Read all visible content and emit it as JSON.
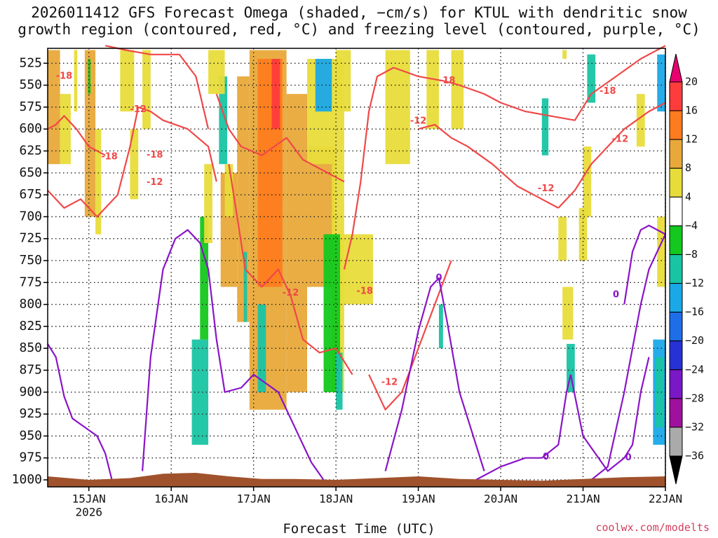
{
  "title_line1": "2026011412 GFS Forecast Omega (shaded, −cm/s) for KTUL with dendritic snow",
  "title_line2": "growth region (contoured, red, °C) and freezing level (contoured, purple, °C)",
  "credit": "coolwx.com/modelts",
  "chart_data": {
    "type": "heatmap",
    "title": "2026011412 GFS Forecast Omega (shaded, −cm/s) for KTUL with dendritic snow growth region (contoured, red, °C) and freezing level (contoured, purple, °C)",
    "xlabel": "Forecast Time (UTC)",
    "ylabel": "",
    "x_ticks": [
      {
        "label": "15JAN",
        "sub": "2026",
        "day": 0.5
      },
      {
        "label": "16JAN",
        "sub": "",
        "day": 1.5
      },
      {
        "label": "17JAN",
        "sub": "",
        "day": 2.5
      },
      {
        "label": "18JAN",
        "sub": "",
        "day": 3.5
      },
      {
        "label": "19JAN",
        "sub": "",
        "day": 4.5
      },
      {
        "label": "20JAN",
        "sub": "",
        "day": 5.5
      },
      {
        "label": "21JAN",
        "sub": "",
        "day": 6.5
      },
      {
        "label": "22JAN",
        "sub": "",
        "day": 7.5
      }
    ],
    "xlim": [
      0,
      7.5
    ],
    "y_ticks": [
      525,
      550,
      575,
      600,
      625,
      650,
      675,
      700,
      725,
      750,
      775,
      800,
      825,
      850,
      875,
      900,
      925,
      950,
      975,
      1000
    ],
    "ylim": [
      508,
      1008
    ],
    "colorbar": {
      "levels": [
        20,
        16,
        12,
        8,
        4,
        -4,
        -8,
        -12,
        -16,
        -20,
        -24,
        -28,
        -32,
        -36
      ],
      "colors": [
        "#e8006e",
        "#ff3c3c",
        "#ff7c1e",
        "#e8a93a",
        "#e8dc3a",
        "#ffffff",
        "#13c81e",
        "#19c4a4",
        "#1aa8e8",
        "#1e6ee8",
        "#2632d6",
        "#7a18c8",
        "#a0109e",
        "#aaaaaa",
        "#000000"
      ]
    },
    "omega_regions": [
      {
        "level": 8,
        "x": [
          0.0,
          0.15
        ],
        "p": [
          510,
          640
        ]
      },
      {
        "level": 4,
        "x": [
          0.15,
          0.28
        ],
        "p": [
          560,
          640
        ]
      },
      {
        "level": 4,
        "x": [
          0.32,
          0.36
        ],
        "p": [
          510,
          580
        ]
      },
      {
        "level": 8,
        "x": [
          0.45,
          0.58
        ],
        "p": [
          510,
          700
        ]
      },
      {
        "level": 4,
        "x": [
          0.58,
          0.65
        ],
        "p": [
          600,
          720
        ]
      },
      {
        "level": -4,
        "x": [
          0.49,
          0.52
        ],
        "p": [
          520,
          560
        ]
      },
      {
        "level": 4,
        "x": [
          0.88,
          1.05
        ],
        "p": [
          510,
          580
        ]
      },
      {
        "level": 4,
        "x": [
          1.0,
          1.1
        ],
        "p": [
          600,
          680
        ]
      },
      {
        "level": 4,
        "x": [
          1.15,
          1.25
        ],
        "p": [
          510,
          600
        ]
      },
      {
        "level": -8,
        "x": [
          1.75,
          1.95
        ],
        "p": [
          840,
          960
        ]
      },
      {
        "level": -4,
        "x": [
          1.85,
          1.95
        ],
        "p": [
          700,
          840
        ]
      },
      {
        "level": 4,
        "x": [
          1.9,
          2.0
        ],
        "p": [
          640,
          730
        ]
      },
      {
        "level": -8,
        "x": [
          2.08,
          2.18
        ],
        "p": [
          540,
          640
        ]
      },
      {
        "level": 4,
        "x": [
          1.95,
          2.15
        ],
        "p": [
          510,
          560
        ]
      },
      {
        "level": 8,
        "x": [
          2.1,
          2.3
        ],
        "p": [
          650,
          780
        ]
      },
      {
        "level": 4,
        "x": [
          2.15,
          2.25
        ],
        "p": [
          640,
          700
        ]
      },
      {
        "level": 8,
        "x": [
          2.3,
          2.45
        ],
        "p": [
          540,
          820
        ]
      },
      {
        "level": 8,
        "x": [
          2.45,
          2.9
        ],
        "p": [
          510,
          920
        ]
      },
      {
        "level": 12,
        "x": [
          2.55,
          2.85
        ],
        "p": [
          520,
          780
        ]
      },
      {
        "level": 16,
        "x": [
          2.72,
          2.82
        ],
        "p": [
          520,
          600
        ]
      },
      {
        "level": 8,
        "x": [
          2.9,
          3.15
        ],
        "p": [
          560,
          900
        ]
      },
      {
        "level": 8,
        "x": [
          3.15,
          3.5
        ],
        "p": [
          620,
          780
        ]
      },
      {
        "level": 4,
        "x": [
          3.15,
          3.6
        ],
        "p": [
          520,
          640
        ]
      },
      {
        "level": 4,
        "x": [
          3.45,
          3.6
        ],
        "p": [
          640,
          900
        ]
      },
      {
        "level": -8,
        "x": [
          2.55,
          2.65
        ],
        "p": [
          800,
          900
        ]
      },
      {
        "level": -8,
        "x": [
          2.38,
          2.42
        ],
        "p": [
          740,
          820
        ]
      },
      {
        "level": -4,
        "x": [
          3.35,
          3.55
        ],
        "p": [
          720,
          900
        ]
      },
      {
        "level": -8,
        "x": [
          3.5,
          3.58
        ],
        "p": [
          855,
          920
        ]
      },
      {
        "level": 4,
        "x": [
          3.55,
          3.95
        ],
        "p": [
          720,
          800
        ]
      },
      {
        "level": -12,
        "x": [
          3.25,
          3.45
        ],
        "p": [
          520,
          580
        ]
      },
      {
        "level": 4,
        "x": [
          3.5,
          3.68
        ],
        "p": [
          510,
          580
        ]
      },
      {
        "level": 4,
        "x": [
          4.1,
          4.4
        ],
        "p": [
          510,
          640
        ]
      },
      {
        "level": 4,
        "x": [
          4.6,
          4.75
        ],
        "p": [
          510,
          600
        ]
      },
      {
        "level": 4,
        "x": [
          4.9,
          5.05
        ],
        "p": [
          510,
          600
        ]
      },
      {
        "level": -8,
        "x": [
          4.75,
          4.8
        ],
        "p": [
          800,
          850
        ]
      },
      {
        "level": -8,
        "x": [
          6.0,
          6.08
        ],
        "p": [
          565,
          630
        ]
      },
      {
        "level": 4,
        "x": [
          6.2,
          6.3
        ],
        "p": [
          700,
          750
        ]
      },
      {
        "level": 4,
        "x": [
          6.25,
          6.38
        ],
        "p": [
          780,
          840
        ]
      },
      {
        "level": -8,
        "x": [
          6.3,
          6.4
        ],
        "p": [
          845,
          900
        ]
      },
      {
        "level": 4,
        "x": [
          6.45,
          6.55
        ],
        "p": [
          690,
          750
        ]
      },
      {
        "level": -8,
        "x": [
          6.55,
          6.65
        ],
        "p": [
          515,
          570
        ]
      },
      {
        "level": 4,
        "x": [
          6.25,
          6.3
        ],
        "p": [
          510,
          520
        ]
      },
      {
        "level": 4,
        "x": [
          6.5,
          6.6
        ],
        "p": [
          620,
          700
        ]
      },
      {
        "level": 4,
        "x": [
          7.15,
          7.25
        ],
        "p": [
          560,
          620
        ]
      },
      {
        "level": 4,
        "x": [
          7.4,
          7.5
        ],
        "p": [
          700,
          780
        ]
      },
      {
        "level": -12,
        "x": [
          7.35,
          7.5
        ],
        "p": [
          840,
          960
        ]
      },
      {
        "level": -8,
        "x": [
          7.38,
          7.48
        ],
        "p": [
          860,
          940
        ]
      },
      {
        "level": -12,
        "x": [
          7.4,
          7.5
        ],
        "p": [
          515,
          580
        ]
      }
    ],
    "dendritic_contours": [
      {
        "label": "-18",
        "x": [
          0.0,
          0.1,
          0.2,
          0.35,
          0.5,
          0.7
        ],
        "p": [
          600,
          595,
          585,
          600,
          620,
          630
        ]
      },
      {
        "label": "-18",
        "x": [
          0.7,
          0.95,
          1.25,
          1.6,
          1.8,
          1.95
        ],
        "p": [
          505,
          510,
          515,
          515,
          540,
          600
        ]
      },
      {
        "label": "-12",
        "x": [
          0.0,
          0.2,
          0.4,
          0.6,
          0.85,
          1.0,
          1.1,
          1.25,
          1.4,
          1.7,
          1.95,
          2.05
        ],
        "p": [
          670,
          690,
          680,
          700,
          675,
          620,
          575,
          580,
          590,
          600,
          620,
          660
        ]
      },
      {
        "label": "-18",
        "x": [
          2.05,
          2.2,
          2.35,
          2.6,
          2.9,
          3.1,
          3.4,
          3.6
        ],
        "p": [
          560,
          600,
          620,
          630,
          610,
          635,
          650,
          660
        ]
      },
      {
        "label": "-12",
        "x": [
          2.2,
          2.3,
          2.4,
          2.6,
          2.8,
          2.95,
          3.1,
          3.3,
          3.5,
          3.7
        ],
        "p": [
          640,
          700,
          760,
          780,
          760,
          790,
          840,
          855,
          850,
          880
        ]
      },
      {
        "label": "-18",
        "x": [
          3.6,
          3.7,
          3.8,
          3.9,
          4.0,
          4.2
        ],
        "p": [
          760,
          720,
          660,
          580,
          540,
          530
        ]
      },
      {
        "label": "-12",
        "x": [
          3.9,
          4.0,
          4.1,
          4.3,
          4.5,
          4.7,
          4.9
        ],
        "p": [
          880,
          900,
          920,
          900,
          850,
          800,
          750
        ]
      },
      {
        "label": "-18",
        "x": [
          4.2,
          4.5,
          4.8,
          5.0,
          5.3,
          5.5
        ],
        "p": [
          530,
          540,
          545,
          550,
          560,
          570
        ]
      },
      {
        "label": "-18",
        "x": [
          5.5,
          5.8,
          6.1,
          6.4,
          6.6,
          6.9,
          7.2,
          7.5
        ],
        "p": [
          570,
          580,
          585,
          590,
          560,
          540,
          520,
          505
        ]
      },
      {
        "label": "-12",
        "x": [
          4.5,
          4.7,
          4.9,
          5.1,
          5.4,
          5.7,
          6.0,
          6.2
        ],
        "p": [
          600,
          595,
          610,
          620,
          640,
          665,
          680,
          690
        ]
      },
      {
        "label": "-12",
        "x": [
          6.2,
          6.4,
          6.6,
          6.8,
          7.0,
          7.3,
          7.5
        ],
        "p": [
          690,
          670,
          640,
          620,
          600,
          580,
          570
        ]
      }
    ],
    "freezing_contours": [
      {
        "label": "0",
        "x": [
          0.0,
          0.1,
          0.2,
          0.3,
          0.45,
          0.6,
          0.7,
          0.78
        ],
        "p": [
          845,
          860,
          905,
          930,
          940,
          950,
          970,
          1000
        ]
      },
      {
        "label": "0",
        "x": [
          1.15,
          1.25,
          1.4,
          1.55,
          1.7,
          1.85,
          1.95
        ],
        "p": [
          990,
          860,
          760,
          725,
          715,
          730,
          760
        ]
      },
      {
        "label": "0",
        "x": [
          1.95,
          2.05,
          2.15,
          2.35,
          2.5,
          2.8,
          3.2,
          3.35
        ],
        "p": [
          760,
          840,
          900,
          895,
          880,
          900,
          980,
          1000
        ]
      },
      {
        "label": "0",
        "x": [
          4.1,
          4.3,
          4.5,
          4.65,
          4.75,
          4.85,
          5.0,
          5.3
        ],
        "p": [
          990,
          920,
          830,
          780,
          770,
          820,
          900,
          990
        ]
      },
      {
        "label": "0",
        "x": [
          5.2,
          5.5,
          5.8,
          6.0,
          6.2,
          6.3,
          6.35
        ],
        "p": [
          1000,
          985,
          975,
          975,
          960,
          900,
          880
        ]
      },
      {
        "label": "0",
        "x": [
          6.35,
          6.5,
          6.8,
          7.0,
          7.1,
          7.2,
          7.3
        ],
        "p": [
          880,
          950,
          990,
          975,
          960,
          900,
          860
        ]
      },
      {
        "label": "0",
        "x": [
          6.6,
          6.8,
          7.0,
          7.2,
          7.3,
          7.5
        ],
        "p": [
          1000,
          985,
          900,
          800,
          760,
          720
        ]
      },
      {
        "label": "0",
        "x": [
          7.0,
          7.1,
          7.2,
          7.3,
          7.5
        ],
        "p": [
          800,
          740,
          715,
          710,
          720
        ]
      }
    ],
    "contour_labels": [
      {
        "text": "-18",
        "x": 0.2,
        "p": 540
      },
      {
        "text": "-12",
        "x": 1.1,
        "p": 578
      },
      {
        "text": "-18",
        "x": 0.75,
        "p": 632
      },
      {
        "text": "-18",
        "x": 1.3,
        "p": 630
      },
      {
        "text": "-12",
        "x": 1.3,
        "p": 661
      },
      {
        "text": "-12",
        "x": 2.95,
        "p": 787
      },
      {
        "text": "-18",
        "x": 3.85,
        "p": 785
      },
      {
        "text": "-12",
        "x": 4.15,
        "p": 889
      },
      {
        "text": "-12",
        "x": 4.5,
        "p": 591
      },
      {
        "text": "-18",
        "x": 4.85,
        "p": 545
      },
      {
        "text": "-12",
        "x": 6.05,
        "p": 668
      },
      {
        "text": "-18",
        "x": 6.8,
        "p": 557
      },
      {
        "text": "-12",
        "x": 6.95,
        "p": 612
      },
      {
        "text": "0",
        "x": 4.75,
        "p": 770
      },
      {
        "text": "0",
        "x": 6.9,
        "p": 789
      },
      {
        "text": "0",
        "x": 6.05,
        "p": 974
      },
      {
        "text": "0",
        "x": 7.05,
        "p": 975
      }
    ],
    "terrain_color": "#a0522d"
  }
}
